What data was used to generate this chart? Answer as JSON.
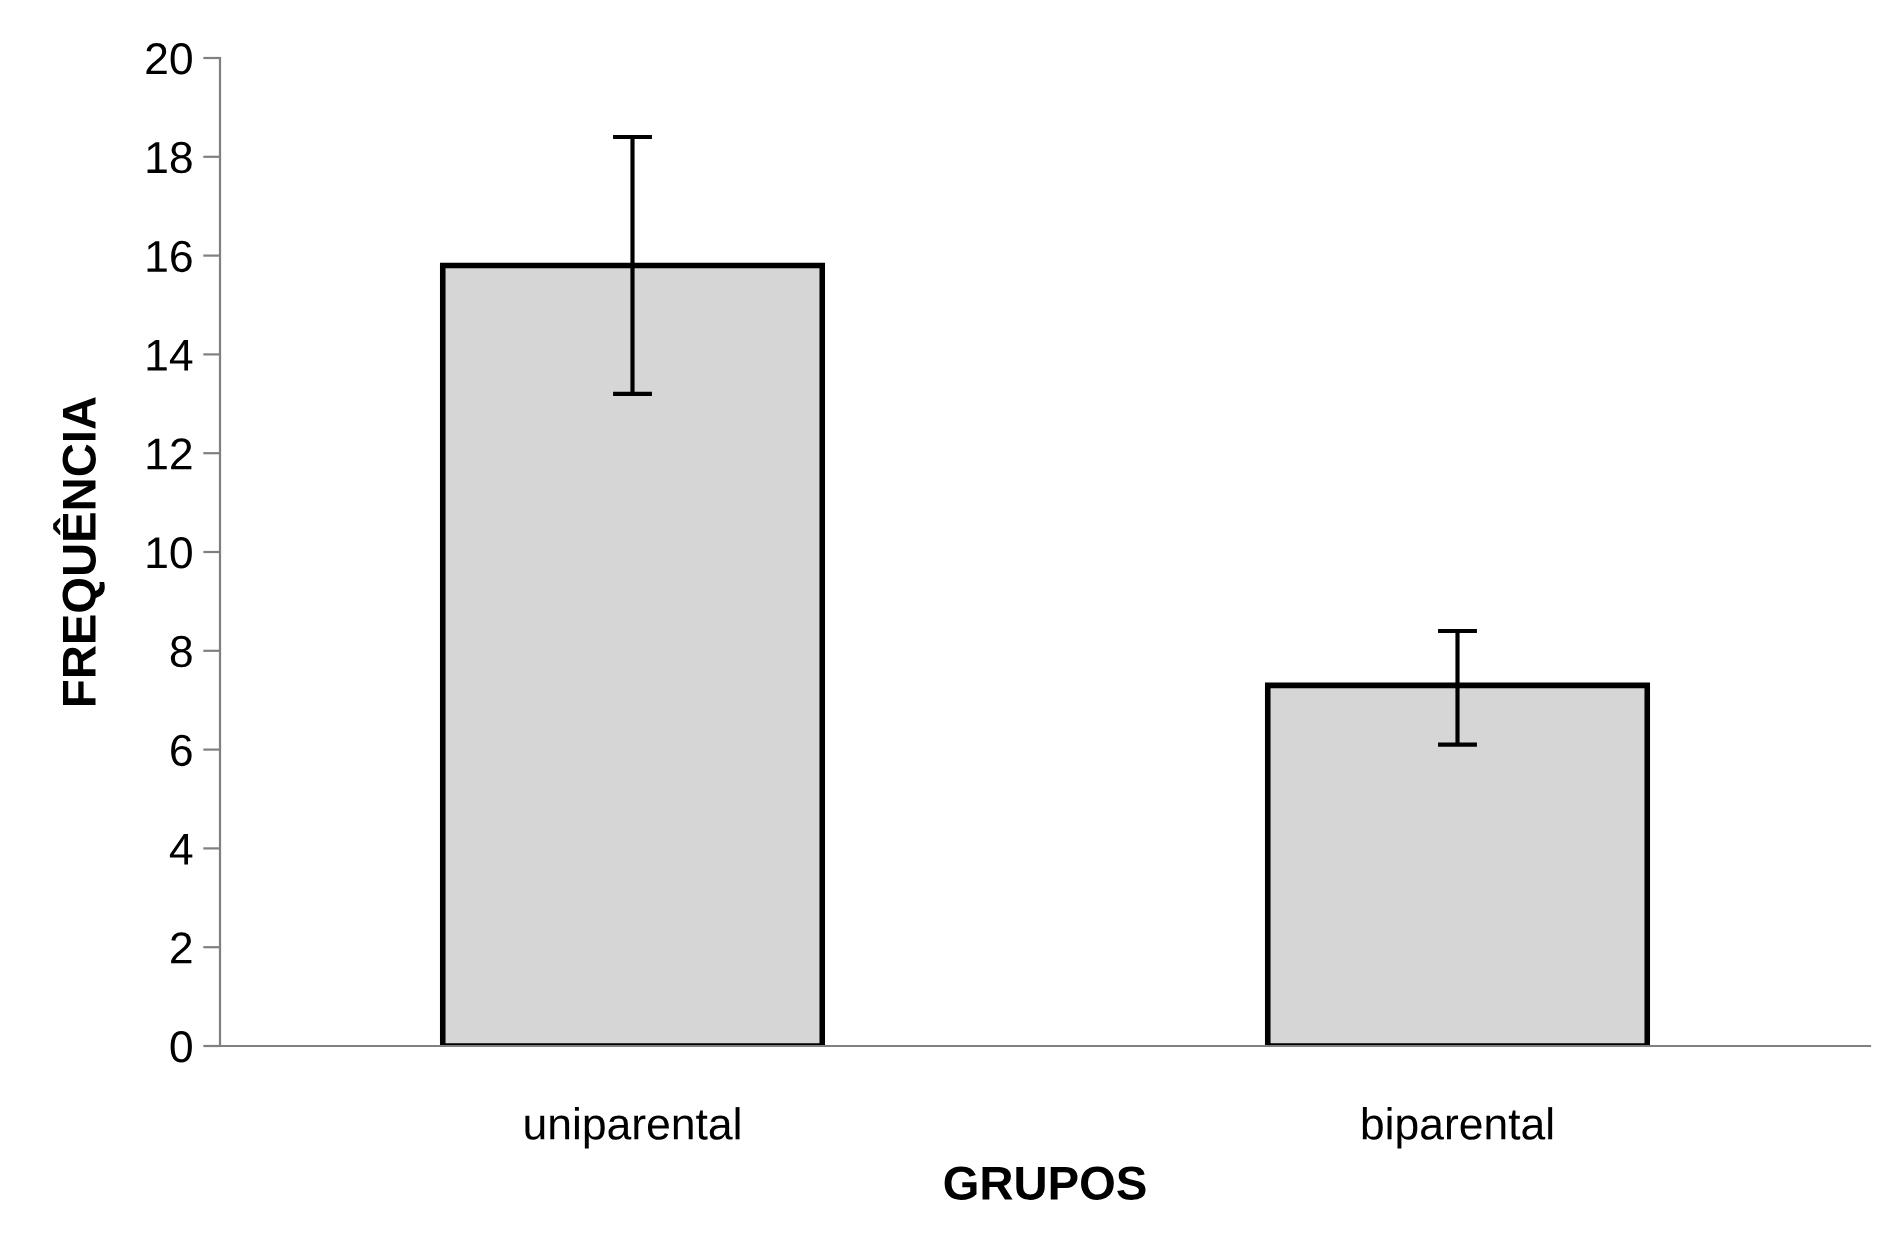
{
  "chart_data": {
    "type": "bar",
    "xlabel": "GRUPOS",
    "ylabel": "FREQUÊNCIA",
    "categories": [
      "uniparental",
      "biparental"
    ],
    "series": [
      {
        "color": "#d6d6d6",
        "values": [
          15.8,
          7.3
        ],
        "errors": [
          [
            13.2,
            18.4
          ],
          [
            6.1,
            8.4
          ]
        ]
      }
    ],
    "ylim": [
      0,
      20
    ],
    "yticks": [
      0,
      2,
      4,
      6,
      8,
      10,
      12,
      14,
      16,
      18,
      20
    ],
    "grid": false
  }
}
